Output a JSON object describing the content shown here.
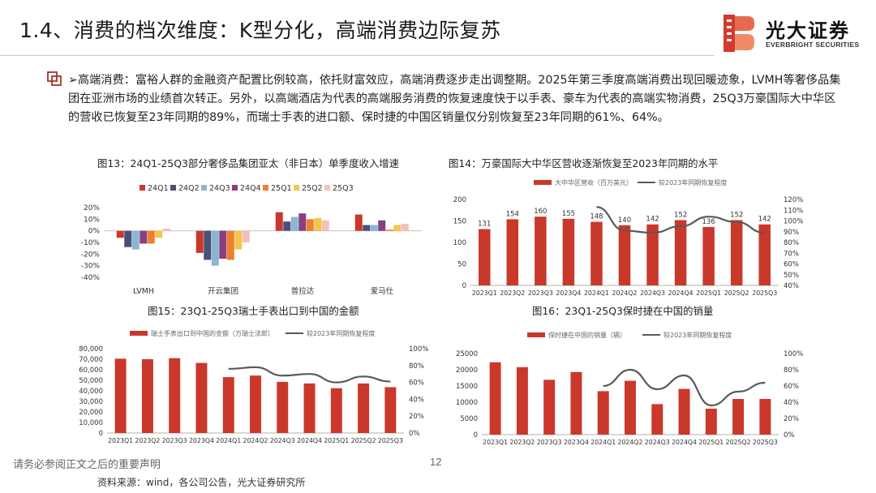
{
  "header": {
    "title": "1.4、消费的档次维度：K型分化，高端消费边际复苏",
    "logo_cn": "光大证券",
    "logo_en": "EVERBRIGHT SECURITIES"
  },
  "paragraph": {
    "text": "➢高端消费：富裕人群的金融资产配置比例较高，依托财富效应，高端消费逐步走出调整期。2025年第三季度高端消费出现回暖迹象，LVMH等奢侈品集团在亚洲市场的业绩首次转正。另外，以高端酒店为代表的高端服务消费的恢复速度快于以手表、豪车为代表的高端实物消费，25Q3万豪国际大中华区的营收已恢复至23年同期的89%，而瑞士手表的进口额、保时捷的中国区销量仅分别恢复至23年同期的61%、64%。"
  },
  "colors": {
    "bar_red": "#c9382b",
    "line_gray": "#5a5a5a",
    "s1": "#c9382b",
    "s2": "#4a4f7a",
    "s3": "#8ab6d6",
    "s4": "#8a3f7e",
    "s5": "#ee7f2e",
    "s6": "#f2c74a",
    "s7": "#f4c0bc"
  },
  "chart_data": [
    {
      "id": "fig13",
      "type": "bar",
      "title": "图13：24Q1-25Q3部分奢侈品集团亚太（非日本）单季度收入增速",
      "categories": [
        "LVMH",
        "开云集团",
        "普拉达",
        "爱马仕"
      ],
      "series": [
        {
          "name": "24Q1",
          "values": [
            -0.06,
            -0.19,
            0.16,
            0.14
          ]
        },
        {
          "name": "24Q2",
          "values": [
            -0.14,
            -0.25,
            0.08,
            0.05
          ]
        },
        {
          "name": "24Q3",
          "values": [
            -0.16,
            -0.3,
            0.12,
            0.05
          ]
        },
        {
          "name": "24Q4",
          "values": [
            -0.11,
            -0.24,
            0.15,
            0.09
          ]
        },
        {
          "name": "25Q1",
          "values": [
            -0.11,
            -0.25,
            0.1,
            0.01
          ]
        },
        {
          "name": "25Q2",
          "values": [
            -0.06,
            -0.16,
            0.11,
            0.05
          ]
        },
        {
          "name": "25Q3",
          "values": [
            0.02,
            -0.1,
            0.09,
            0.06
          ]
        }
      ],
      "ylim": [
        -0.4,
        0.2
      ],
      "yticks": [
        "20%",
        "10%",
        "0%",
        "-10%",
        "-20%",
        "-30%",
        "-40%"
      ]
    },
    {
      "id": "fig14",
      "type": "bar",
      "title": "图14：万豪国际大中华区营收逐渐恢复至2023年同期的水平",
      "categories": [
        "2023Q1",
        "2023Q2",
        "2023Q3",
        "2023Q4",
        "2024Q1",
        "2024Q2",
        "2024Q3",
        "2024Q4",
        "2025Q1",
        "2025Q2",
        "2025Q3"
      ],
      "bar_series": {
        "name": "大中华区营收（百万美元）",
        "values": [
          131,
          154,
          160,
          155,
          148,
          140,
          142,
          152,
          136,
          152,
          142
        ]
      },
      "line_series": {
        "name": "较2023年同期恢复程度",
        "values": [
          null,
          null,
          null,
          null,
          1.13,
          0.91,
          0.89,
          0.95,
          1.04,
          0.99,
          0.89
        ]
      },
      "ylim_left": [
        0,
        200
      ],
      "yticks_left": [
        "200",
        "150",
        "100",
        "50",
        "0"
      ],
      "ylim_right": [
        0.4,
        1.2
      ],
      "yticks_right": [
        "120%",
        "110%",
        "100%",
        "90%",
        "80%",
        "70%",
        "60%",
        "50%",
        "40%"
      ]
    },
    {
      "id": "fig15",
      "type": "bar",
      "title": "图15：23Q1-25Q3瑞士手表出口到中国的金额",
      "categories": [
        "2023Q1",
        "2023Q2",
        "2023Q3",
        "2023Q4",
        "2024Q1",
        "2024Q2",
        "2024Q3",
        "2024Q4",
        "2025Q1",
        "2025Q2",
        "2025Q3"
      ],
      "bar_series": {
        "name": "瑞士手表出口到中国的金额（万瑞士法郎）",
        "values": [
          70500,
          70000,
          71000,
          66500,
          53000,
          54500,
          48500,
          47000,
          42500,
          47000,
          43500
        ]
      },
      "line_series": {
        "name": "较2023年同期恢复程度",
        "values": [
          null,
          null,
          null,
          null,
          0.76,
          0.78,
          0.68,
          0.7,
          0.6,
          0.67,
          0.61
        ]
      },
      "ylim_left": [
        0,
        80000
      ],
      "yticks_left": [
        "80,000",
        "70,000",
        "60,000",
        "50,000",
        "40,000",
        "30,000",
        "20,000",
        "10,000",
        "0"
      ],
      "ylim_right": [
        0,
        1.0
      ],
      "yticks_right": [
        "100%",
        "80%",
        "60%",
        "40%",
        "20%",
        "0%"
      ]
    },
    {
      "id": "fig16",
      "type": "bar",
      "title": "图16：23Q1-25Q3保时捷在中国的销量",
      "categories": [
        "2023Q1",
        "2023Q2",
        "2023Q3",
        "2023Q4",
        "2024Q1",
        "2024Q2",
        "2024Q3",
        "2024Q4",
        "2025Q1",
        "2025Q2",
        "2025Q3"
      ],
      "bar_series": {
        "name": "保时捷在中国的销量（辆）",
        "values": [
          22300,
          20800,
          16900,
          19300,
          13400,
          16600,
          9400,
          14100,
          8000,
          11000,
          11000
        ]
      },
      "line_series": {
        "name": "较2023年同期恢复程度",
        "values": [
          null,
          null,
          null,
          null,
          0.6,
          0.8,
          0.56,
          0.73,
          0.36,
          0.53,
          0.64
        ]
      },
      "ylim_left": [
        0,
        25000
      ],
      "yticks_left": [
        "25000",
        "20000",
        "15000",
        "10000",
        "5000",
        "0"
      ],
      "ylim_right": [
        0,
        1.0
      ],
      "yticks_right": [
        "100%",
        "80%",
        "60%",
        "40%",
        "20%",
        "0%"
      ]
    }
  ],
  "footer": {
    "note": "请务必参阅正文之后的重要声明",
    "page": "12",
    "source": "资料来源：wind，各公司公告，光大证券研究所"
  }
}
